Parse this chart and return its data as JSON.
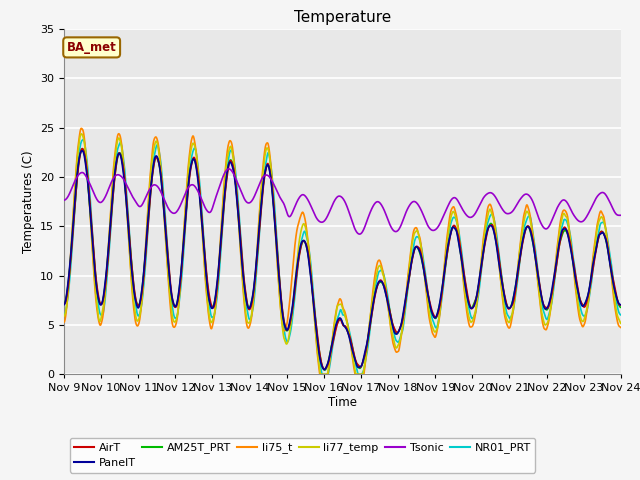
{
  "title": "Temperature",
  "xlabel": "Time",
  "ylabel": "Temperatures (C)",
  "xlim": [
    0,
    15
  ],
  "ylim": [
    0,
    35
  ],
  "yticks": [
    0,
    5,
    10,
    15,
    20,
    25,
    30,
    35
  ],
  "xtick_labels": [
    "Nov 9",
    "Nov 10",
    "Nov 11",
    "Nov 12",
    "Nov 13",
    "Nov 14",
    "Nov 15",
    "Nov 16",
    "Nov 17",
    "Nov 18",
    "Nov 19",
    "Nov 20",
    "Nov 21",
    "Nov 22",
    "Nov 23",
    "Nov 24"
  ],
  "series_colors": {
    "AirT": "#cc0000",
    "PanelT": "#000099",
    "AM25T_PRT": "#00bb00",
    "li75_t": "#ff8800",
    "li77_temp": "#cccc00",
    "Tsonic": "#9900cc",
    "NR01_PRT": "#00cccc"
  },
  "legend_box_color": "#ffffcc",
  "legend_box_edge": "#996600",
  "label_box_text": "BA_met",
  "axes_bg": "#e8e8e8",
  "grid_color": "#ffffff",
  "title_fontsize": 11,
  "fig_facecolor": "#f5f5f5"
}
